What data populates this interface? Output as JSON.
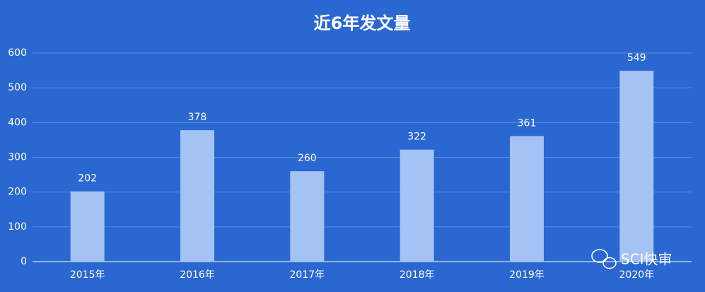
{
  "chart_data": {
    "type": "bar",
    "title": "近6年发文量",
    "categories": [
      "2015年",
      "2016年",
      "2017年",
      "2018年",
      "2019年",
      "2020年"
    ],
    "values": [
      202,
      378,
      260,
      322,
      361,
      549
    ],
    "color": "#a4c2f4",
    "ylim": [
      0,
      600
    ],
    "yticks": [
      0,
      100,
      200,
      300,
      400,
      500,
      600
    ],
    "grid": true,
    "data_labels": true,
    "watermark": "SCI快审"
  }
}
